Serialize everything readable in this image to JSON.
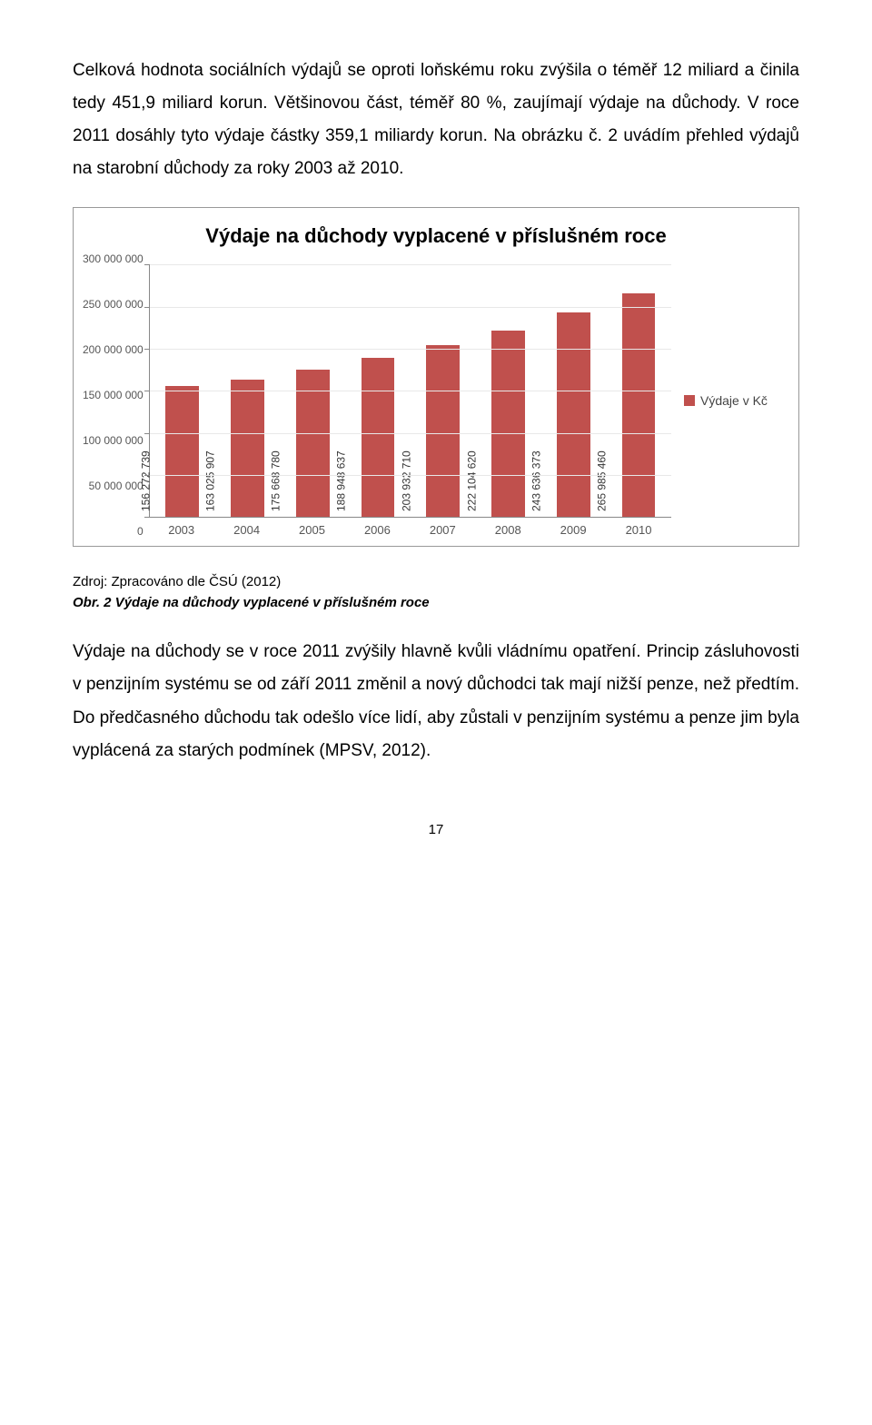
{
  "para1": "Celková hodnota sociálních výdajů se oproti loňskému roku zvýšila o téměř 12 miliard a činila tedy 451,9 miliard korun. Většinovou část, téměř 80 %, zaujímají výdaje na důchody. V roce 2011 dosáhly tyto výdaje částky  359,1  miliardy  korun. Na obrázku č. 2 uvádím přehled výdajů na starobní důchody za roky 2003 až 2010.",
  "chart": {
    "type": "bar",
    "title": "Výdaje na důchody vyplacené v příslušném roce",
    "title_fontsize": 22,
    "categories": [
      "2003",
      "2004",
      "2005",
      "2006",
      "2007",
      "2008",
      "2009",
      "2010"
    ],
    "values": [
      156272739,
      163025907,
      175668780,
      188948637,
      203932710,
      222104620,
      243636373,
      265985460
    ],
    "value_labels": [
      "156 272 739",
      "163 025 907",
      "175 668 780",
      "188 948 637",
      "203 932 710",
      "222 104 620",
      "243 636 373",
      "265 985 460"
    ],
    "bar_color": "#c0504d",
    "background_color": "#ffffff",
    "grid_color": "#e8e8e8",
    "axis_color": "#888888",
    "ylim": [
      0,
      300000000
    ],
    "ytick_step": 50000000,
    "ytick_labels": [
      "300 000 000",
      "250 000 000",
      "200 000 000",
      "150 000 000",
      "100 000 000",
      "50 000 000",
      "0"
    ],
    "legend_label": "Výdaje v Kč",
    "label_fontsize": 12,
    "axis_label_fontsize": 13,
    "bar_width_ratio": 0.58
  },
  "source": "Zdroj: Zpracováno dle ČSÚ (2012)",
  "caption": "Obr. 2 Výdaje na důchody vyplacené v příslušném roce",
  "para2": "Výdaje na důchody se v roce 2011 zvýšily hlavně kvůli vládnímu opatření. Princip zásluhovosti v penzijním systému se od září 2011 změnil a nový důchodci tak mají nižší  penze,  než  předtím.  Do  předčasného  důchodu  tak  odešlo  více  lidí,  aby zůstali v penzijním systému a penze jim byla vyplácená za starých podmínek (MPSV, 2012).",
  "page_number": "17"
}
